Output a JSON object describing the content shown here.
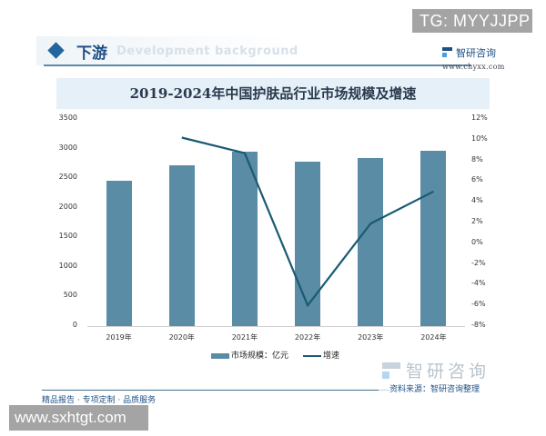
{
  "overlay": {
    "tg_badge": "TG: MYYJJPP",
    "site_badge": "www.sxhtgt.com"
  },
  "header": {
    "title": "下游",
    "subtitle_en": "Development background",
    "brand_name": "智研咨询",
    "brand_url": "www.chyxx.com"
  },
  "chart_data": {
    "type": "bar+line",
    "title": "2019-2024年中国护肤品行业市场规模及增速",
    "categories": [
      "2019年",
      "2020年",
      "2021年",
      "2022年",
      "2023年",
      "2024年"
    ],
    "series": [
      {
        "name": "市场规模：亿元",
        "type": "bar",
        "axis": "left",
        "color": "#5a8ca6",
        "values": [
          2450,
          2710,
          2940,
          2775,
          2835,
          2960
        ]
      },
      {
        "name": "增速",
        "type": "line",
        "axis": "right",
        "color": "#1a5a72",
        "values": [
          null,
          10.2,
          8.7,
          -6.0,
          1.9,
          5.0
        ]
      }
    ],
    "y_left": {
      "ticks": [
        "0",
        "500",
        "1000",
        "1500",
        "2000",
        "2500",
        "3000",
        "3500"
      ],
      "ylim": [
        0,
        3500
      ]
    },
    "y_right": {
      "ticks": [
        "-8%",
        "-6%",
        "-4%",
        "-2%",
        "0%",
        "2%",
        "4%",
        "6%",
        "8%",
        "10%",
        "12%"
      ],
      "ylim": [
        -8,
        12
      ]
    },
    "legend_position": "bottom",
    "grid": false
  },
  "legend": {
    "bar_label": "市场规模：亿元",
    "line_label": "增速"
  },
  "footer": {
    "watermark_text": "智研咨询",
    "source": "资料来源：智研咨询整理",
    "slogan": "精品报告 · 专项定制 · 品质服务"
  }
}
